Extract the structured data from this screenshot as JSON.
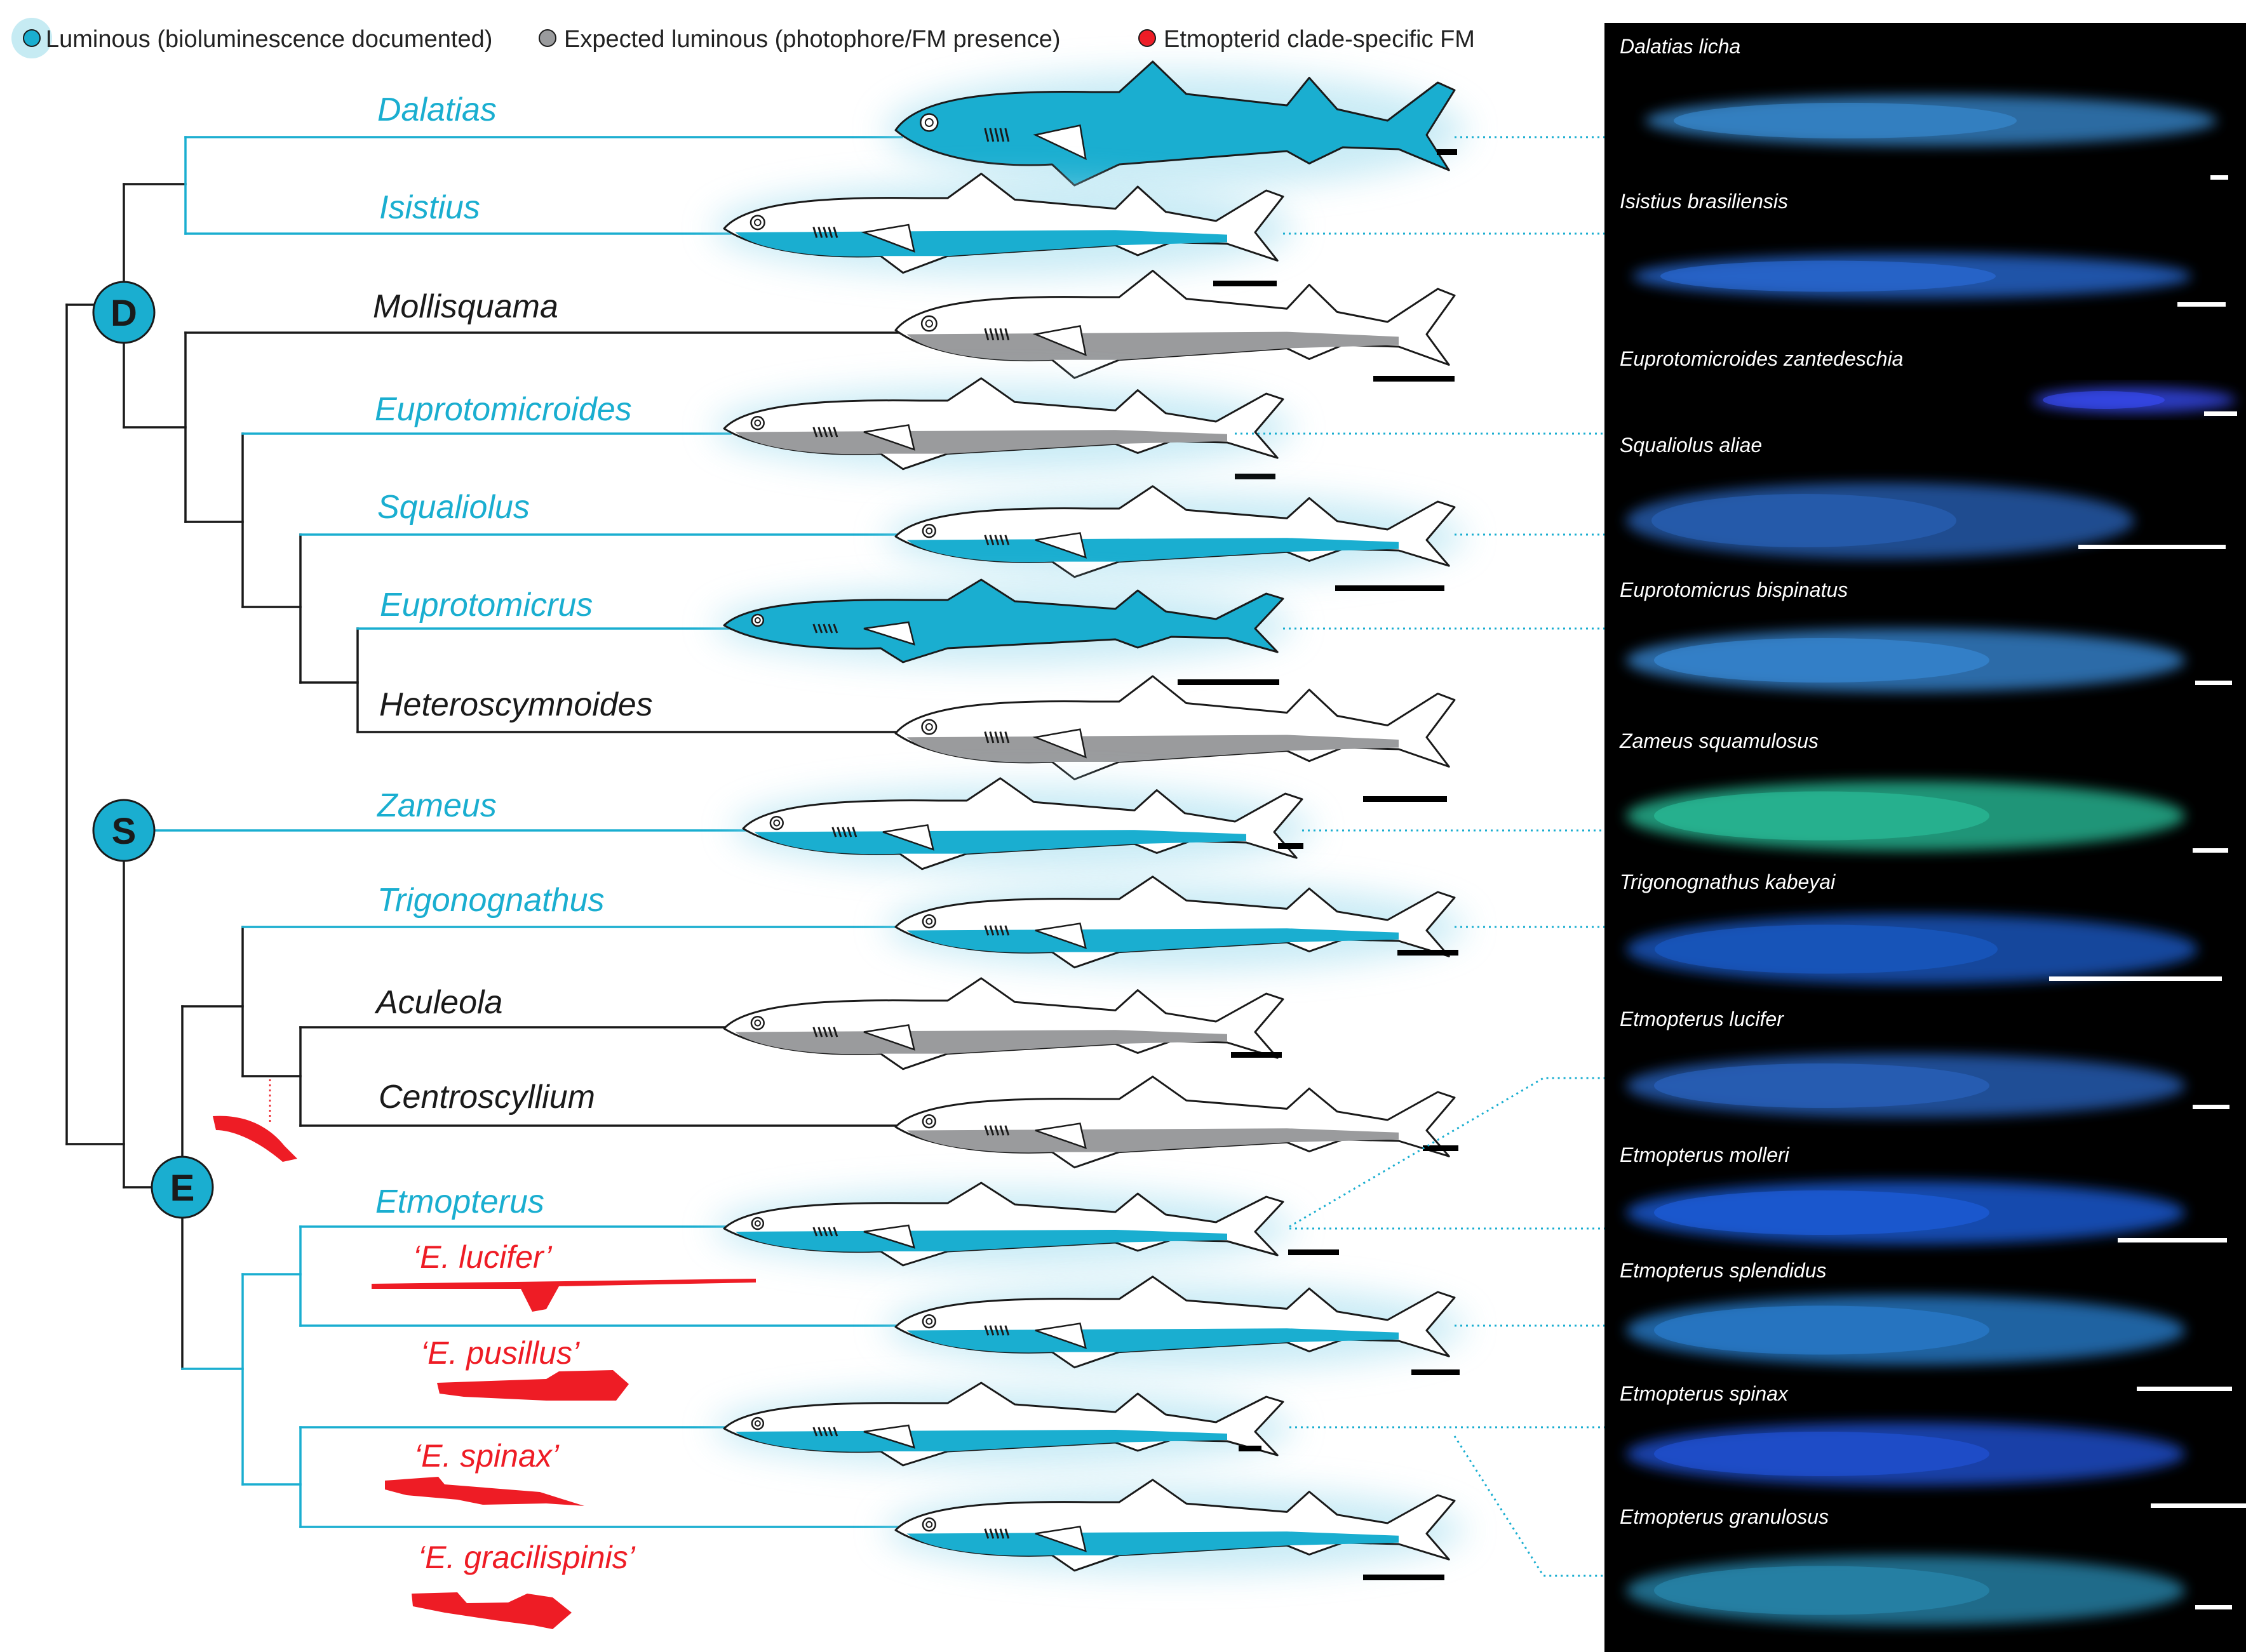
{
  "legend": [
    {
      "label": "Luminous (bioluminescence documented)",
      "color": "#1aaed0",
      "icon": "blue-dot-icon"
    },
    {
      "label": "Expected luminous (photophore/FM presence)",
      "color": "#9a9b9d",
      "icon": "grey-dot-icon"
    },
    {
      "label": "Etmopterid clade-specific FM",
      "color": "#ee1c25",
      "icon": "red-dot-icon"
    }
  ],
  "nodes": {
    "d": "D",
    "s": "S",
    "e": "E"
  },
  "taxa": [
    {
      "name": "Dalatias",
      "luminous": true,
      "pattern": "full"
    },
    {
      "name": "Isistius",
      "luminous": true,
      "pattern": "ventral"
    },
    {
      "name": "Mollisquama",
      "luminous": false,
      "pattern": "grey-ventral"
    },
    {
      "name": "Euprotomicroides",
      "luminous": true,
      "pattern": "grey-ventral"
    },
    {
      "name": "Squaliolus",
      "luminous": true,
      "pattern": "ventral"
    },
    {
      "name": "Euprotomicrus",
      "luminous": true,
      "pattern": "full"
    },
    {
      "name": "Heteroscymnoides",
      "luminous": false,
      "pattern": "grey-ventral"
    },
    {
      "name": "Zameus",
      "luminous": true,
      "pattern": "ventral"
    },
    {
      "name": "Trigonognathus",
      "luminous": true,
      "pattern": "ventral"
    },
    {
      "name": "Aculeola",
      "luminous": false,
      "pattern": "grey-ventral"
    },
    {
      "name": "Centroscyllium",
      "luminous": false,
      "pattern": "grey-ventral"
    },
    {
      "name": "Etmopterus",
      "luminous": true,
      "pattern": "ventral"
    },
    {
      "name": "",
      "luminous": true,
      "pattern": "ventral"
    },
    {
      "name": "",
      "luminous": true,
      "pattern": "ventral"
    },
    {
      "name": "",
      "luminous": true,
      "pattern": "ventral"
    }
  ],
  "fm_labels": [
    "‘E. lucifer’",
    "‘E. pusillus’",
    "‘E. spinax’",
    "‘E. gracilispinis’"
  ],
  "photos": [
    {
      "label": "Dalatias licha",
      "glow": "#3a8fd8"
    },
    {
      "label": "Isistius brasiliensis",
      "glow": "#2b6fe0"
    },
    {
      "label": "Euprotomicroides zantedeschia",
      "glow": "#3a4fff"
    },
    {
      "label": "Squaliolus aliae",
      "glow": "#2a66c0"
    },
    {
      "label": "Euprotomicrus bispinatus",
      "glow": "#3a8fe0"
    },
    {
      "label": "Zameus squamulosus",
      "glow": "#2cc7a0"
    },
    {
      "label": "Trigonognathus kabeyai",
      "glow": "#1a5fd0"
    },
    {
      "label": "Etmopterus lucifer",
      "glow": "#2b67c8"
    },
    {
      "label": "Etmopterus molleri",
      "glow": "#1f63e8"
    },
    {
      "label": "Etmopterus splendidus",
      "glow": "#2c84d8"
    },
    {
      "label": "Etmopterus spinax",
      "glow": "#2356e0"
    },
    {
      "label": "Etmopterus granulosus",
      "glow": "#2a8fb8"
    }
  ],
  "colors": {
    "luminous": "#1aaed0",
    "expected": "#9a9b9d",
    "fm": "#ee1c25",
    "dark": "#1a1a1a"
  }
}
